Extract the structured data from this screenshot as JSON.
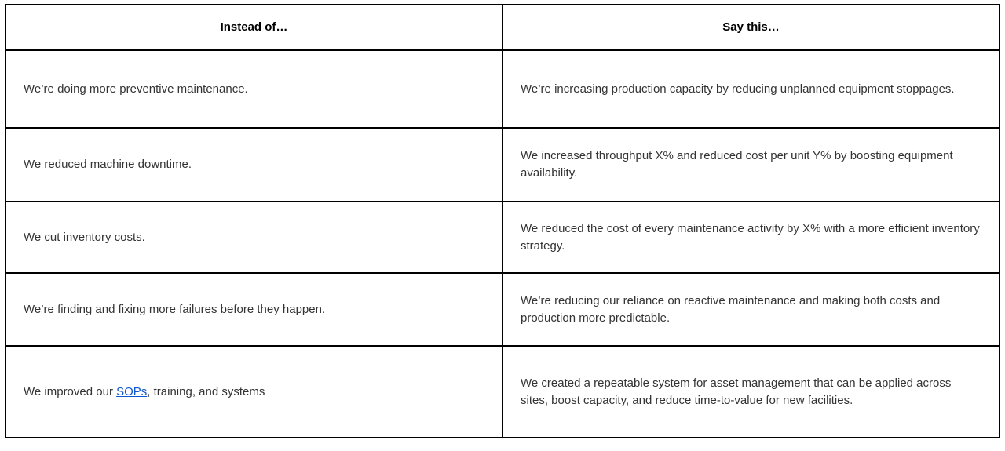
{
  "page": {
    "background_color": "#ffffff",
    "text_color": "#333333",
    "border_color": "#000000",
    "link_color": "#1155cc"
  },
  "table": {
    "headers": {
      "left": "Instead of…",
      "right": "Say this…"
    },
    "rows": [
      {
        "left": "We’re doing more preventive maintenance.",
        "right": "We’re increasing production capacity by reducing unplanned equipment stoppages."
      },
      {
        "left": "We reduced machine downtime.",
        "right": "We increased throughput X% and reduced cost per unit Y% by boosting equipment availability."
      },
      {
        "left": "We cut inventory costs.",
        "right": "We reduced the cost of every maintenance activity by X% with a more efficient inventory strategy."
      },
      {
        "left": "We’re finding and fixing more failures before they happen.",
        "right": "We’re reducing our reliance on reactive maintenance and making both costs and production more predictable."
      },
      {
        "left_parts": {
          "prefix": "We improved our ",
          "link": "SOPs",
          "suffix": ", training, and systems"
        },
        "right": "We created a repeatable system for asset management that can be applied across sites, boost capacity, and reduce time-to-value for new facilities."
      }
    ]
  }
}
